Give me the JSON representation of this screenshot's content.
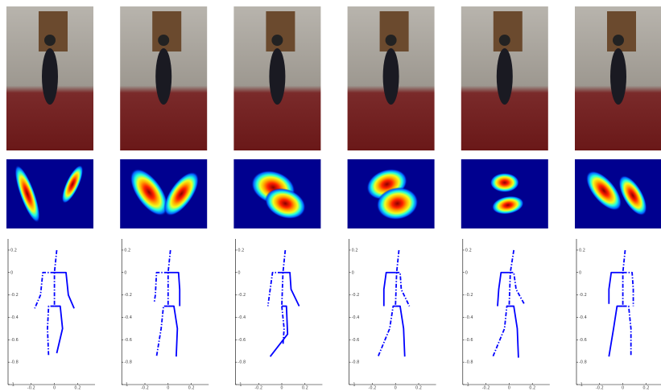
{
  "chart_data": [
    {
      "type": "line",
      "xlim": [
        -0.4,
        0.35
      ],
      "ylim": [
        -1,
        0.3
      ],
      "xticks": [
        -0.2,
        0,
        0.2
      ],
      "yticks": [
        0.2,
        0,
        -0.2,
        -0.4,
        -0.6,
        -0.8,
        -1
      ],
      "series": [
        {
          "color": "#0000ff",
          "style": "dashdot",
          "x": [
            0.02,
            0,
            0
          ],
          "values": [
            0.2,
            0,
            -0.3
          ]
        },
        {
          "color": "#0000ff",
          "style": "dashdot",
          "x": [
            0,
            -0.1,
            -0.12,
            -0.17
          ],
          "values": [
            0,
            0,
            -0.2,
            -0.32
          ]
        },
        {
          "color": "#0000ff",
          "style": "solid",
          "x": [
            0,
            0.1,
            0.12,
            0.17
          ],
          "values": [
            0,
            0,
            -0.2,
            -0.32
          ]
        },
        {
          "color": "#0000ff",
          "style": "dashdot",
          "x": [
            0,
            -0.05,
            -0.06,
            -0.05
          ],
          "values": [
            -0.3,
            -0.3,
            -0.5,
            -0.75
          ]
        },
        {
          "color": "#0000ff",
          "style": "solid",
          "x": [
            0,
            0.05,
            0.07,
            0.02
          ],
          "values": [
            -0.3,
            -0.3,
            -0.5,
            -0.72
          ]
        }
      ]
    },
    {
      "type": "line",
      "xlim": [
        -0.4,
        0.35
      ],
      "ylim": [
        -1,
        0.3
      ],
      "xticks": [
        -0.2,
        0,
        0.2
      ],
      "yticks": [
        0.2,
        0,
        -0.2,
        -0.4,
        -0.6,
        -0.8,
        -1
      ],
      "series": [
        {
          "color": "#0000ff",
          "style": "dashdot",
          "x": [
            0.02,
            0,
            0
          ],
          "values": [
            0.2,
            0,
            -0.3
          ]
        },
        {
          "color": "#0000ff",
          "style": "dashdot",
          "x": [
            0,
            -0.1,
            -0.11,
            -0.12
          ],
          "values": [
            0,
            0,
            -0.2,
            -0.27
          ]
        },
        {
          "color": "#0000ff",
          "style": "solid",
          "x": [
            0,
            0.09,
            0.1,
            0.1
          ],
          "values": [
            0,
            0,
            -0.15,
            -0.3
          ]
        },
        {
          "color": "#0000ff",
          "style": "dashdot",
          "x": [
            0,
            -0.04,
            -0.06,
            -0.1
          ],
          "values": [
            -0.3,
            -0.3,
            -0.5,
            -0.75
          ]
        },
        {
          "color": "#0000ff",
          "style": "solid",
          "x": [
            0,
            0.05,
            0.08,
            0.07
          ],
          "values": [
            -0.3,
            -0.3,
            -0.5,
            -0.75
          ]
        }
      ]
    },
    {
      "type": "line",
      "xlim": [
        -0.4,
        0.35
      ],
      "ylim": [
        -1,
        0.3
      ],
      "xticks": [
        -0.2,
        0,
        0.2
      ],
      "yticks": [
        0.2,
        0,
        -0.2,
        -0.4,
        -0.6,
        -0.8,
        -1
      ],
      "series": [
        {
          "color": "#0000ff",
          "style": "dashdot",
          "x": [
            0.03,
            0.01,
            0
          ],
          "values": [
            0.2,
            0,
            -0.3
          ]
        },
        {
          "color": "#0000ff",
          "style": "dashdot",
          "x": [
            0,
            -0.08,
            -0.1,
            -0.12
          ],
          "values": [
            0,
            0,
            -0.15,
            -0.3
          ]
        },
        {
          "color": "#0000ff",
          "style": "solid",
          "x": [
            0,
            0.07,
            0.08,
            0.15
          ],
          "values": [
            0,
            0,
            -0.15,
            -0.3
          ]
        },
        {
          "color": "#0000ff",
          "style": "dashdot",
          "x": [
            0,
            0,
            0.02,
            0.01
          ],
          "values": [
            -0.3,
            -0.3,
            -0.5,
            -0.65
          ]
        },
        {
          "color": "#0000ff",
          "style": "solid",
          "x": [
            0,
            0.04,
            0.05,
            -0.1
          ],
          "values": [
            -0.3,
            -0.3,
            -0.55,
            -0.75
          ]
        }
      ]
    },
    {
      "type": "line",
      "xlim": [
        -0.4,
        0.35
      ],
      "ylim": [
        -1,
        0.3
      ],
      "xticks": [
        -0.2,
        0,
        0.2
      ],
      "yticks": [
        0.2,
        0,
        -0.2,
        -0.4,
        -0.6,
        -0.8,
        -1
      ],
      "series": [
        {
          "color": "#0000ff",
          "style": "dashdot",
          "x": [
            0.03,
            0.01,
            0
          ],
          "values": [
            0.2,
            0,
            -0.3
          ]
        },
        {
          "color": "#0000ff",
          "style": "solid",
          "x": [
            0,
            -0.08,
            -0.1,
            -0.1
          ],
          "values": [
            0,
            0,
            -0.15,
            -0.3
          ]
        },
        {
          "color": "#0000ff",
          "style": "dashdot",
          "x": [
            0,
            0.04,
            0.05,
            0.12
          ],
          "values": [
            0,
            0,
            -0.15,
            -0.3
          ]
        },
        {
          "color": "#0000ff",
          "style": "dashdot",
          "x": [
            0,
            -0.02,
            -0.05,
            -0.15
          ],
          "values": [
            -0.3,
            -0.3,
            -0.5,
            -0.75
          ]
        },
        {
          "color": "#0000ff",
          "style": "solid",
          "x": [
            0,
            0.04,
            0.07,
            0.08
          ],
          "values": [
            -0.3,
            -0.3,
            -0.5,
            -0.75
          ]
        }
      ]
    },
    {
      "type": "line",
      "xlim": [
        -0.4,
        0.35
      ],
      "ylim": [
        -1,
        0.3
      ],
      "xticks": [
        -0.2,
        0,
        0.2
      ],
      "yticks": [
        0.2,
        0,
        -0.2,
        -0.4,
        -0.6,
        -0.8,
        -1
      ],
      "series": [
        {
          "color": "#0000ff",
          "style": "dashdot",
          "x": [
            0.04,
            0.01,
            0
          ],
          "values": [
            0.2,
            0,
            -0.3
          ]
        },
        {
          "color": "#0000ff",
          "style": "solid",
          "x": [
            0,
            -0.07,
            -0.09,
            -0.1
          ],
          "values": [
            0,
            0,
            -0.15,
            -0.3
          ]
        },
        {
          "color": "#0000ff",
          "style": "dashdot",
          "x": [
            0,
            0.04,
            0.06,
            0.13
          ],
          "values": [
            0,
            0,
            -0.15,
            -0.28
          ]
        },
        {
          "color": "#0000ff",
          "style": "dashdot",
          "x": [
            0,
            -0.02,
            -0.04,
            -0.14
          ],
          "values": [
            -0.3,
            -0.3,
            -0.5,
            -0.75
          ]
        },
        {
          "color": "#0000ff",
          "style": "solid",
          "x": [
            0,
            0.04,
            0.07,
            0.08
          ],
          "values": [
            -0.3,
            -0.3,
            -0.5,
            -0.76
          ]
        }
      ]
    },
    {
      "type": "line",
      "xlim": [
        -0.4,
        0.35
      ],
      "ylim": [
        -1,
        0.3
      ],
      "xticks": [
        -0.2,
        0,
        0.2
      ],
      "yticks": [
        0.2,
        0,
        -0.2,
        -0.4,
        -0.6,
        -0.8,
        -1
      ],
      "series": [
        {
          "color": "#0000ff",
          "style": "dashdot",
          "x": [
            0.02,
            0,
            0
          ],
          "values": [
            0.2,
            0,
            -0.3
          ]
        },
        {
          "color": "#0000ff",
          "style": "solid",
          "x": [
            0,
            -0.1,
            -0.12,
            -0.12
          ],
          "values": [
            0,
            0,
            -0.15,
            -0.28
          ]
        },
        {
          "color": "#0000ff",
          "style": "dashdot",
          "x": [
            0,
            0.08,
            0.09,
            0.09
          ],
          "values": [
            0,
            0,
            -0.15,
            -0.3
          ]
        },
        {
          "color": "#0000ff",
          "style": "solid",
          "x": [
            0,
            -0.05,
            -0.08,
            -0.12
          ],
          "values": [
            -0.3,
            -0.3,
            -0.5,
            -0.75
          ]
        },
        {
          "color": "#0000ff",
          "style": "dashdot",
          "x": [
            0,
            0.05,
            0.07,
            0.07
          ],
          "values": [
            -0.3,
            -0.3,
            -0.5,
            -0.75
          ]
        }
      ]
    }
  ]
}
